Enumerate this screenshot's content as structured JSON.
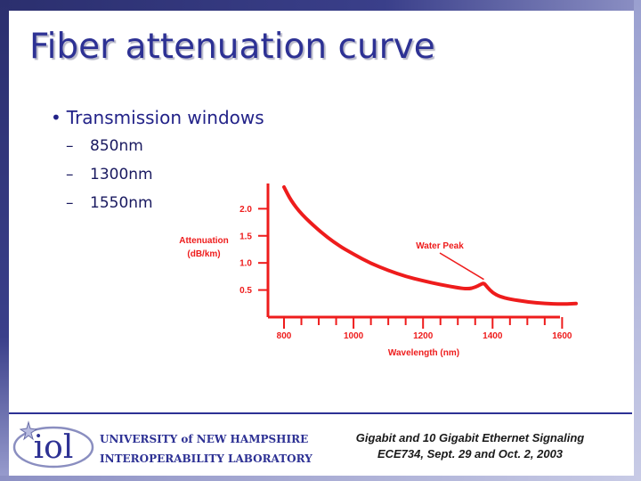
{
  "slide": {
    "title": "Fiber attenuation curve",
    "bullet": "Transmission windows",
    "sub_items": [
      "850nm",
      "1300nm",
      "1550nm"
    ]
  },
  "colors": {
    "title": "#2d3194",
    "curve": "#ee1c1c",
    "axis": "#ee1c1c",
    "tick_text": "#ee1c1c",
    "frame": "#2b2f6e"
  },
  "chart_data": {
    "type": "line",
    "title": "",
    "xlabel": "Wavelength (nm)",
    "ylabel_lines": [
      "Attenuation",
      "(dB/km)"
    ],
    "xlim": [
      800,
      1640
    ],
    "ylim": [
      0,
      2.4
    ],
    "x_ticks": [
      800,
      1000,
      1200,
      1400,
      1600
    ],
    "y_ticks": [
      0.5,
      1.0,
      1.5,
      2.0
    ],
    "y_tick_labels": [
      "0.5",
      "1.0",
      "1.5",
      "2.0"
    ],
    "grid": false,
    "series": [
      {
        "x": [
          800,
          820,
          850,
          900,
          950,
          1000,
          1050,
          1100,
          1150,
          1200,
          1250,
          1300,
          1330,
          1350,
          1365,
          1375,
          1385,
          1400,
          1420,
          1450,
          1500,
          1550,
          1600,
          1640
        ],
        "y": [
          2.4,
          2.15,
          1.9,
          1.6,
          1.35,
          1.16,
          0.99,
          0.86,
          0.75,
          0.67,
          0.6,
          0.54,
          0.52,
          0.55,
          0.6,
          0.63,
          0.55,
          0.45,
          0.38,
          0.33,
          0.28,
          0.25,
          0.24,
          0.25
        ]
      }
    ],
    "annotations": [
      {
        "text": "Water Peak",
        "x": 1380,
        "y": 0.63
      }
    ]
  },
  "footer": {
    "logo_text": "iol",
    "org_line1": "UNIVERSITY of NEW HAMPSHIRE",
    "org_line2": "INTEROPERABILITY LABORATORY",
    "event_line1": "Gigabit and 10 Gigabit Ethernet Signaling",
    "event_line2": "ECE734, Sept. 29 and Oct. 2, 2003"
  }
}
